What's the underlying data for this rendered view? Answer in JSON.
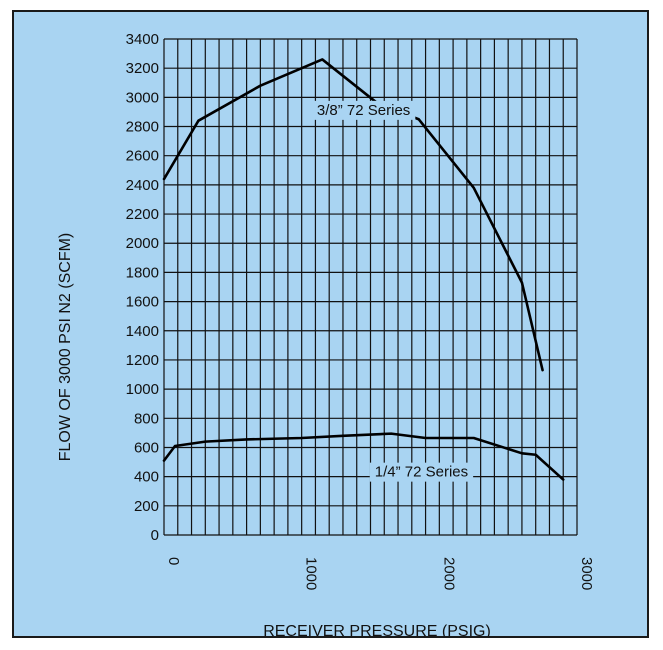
{
  "chart_data": {
    "type": "line",
    "title": "",
    "xlabel": "RECEIVER PRESSURE (PSIG)",
    "ylabel": "FLOW OF 3000 PSI N2 (SCFM)",
    "xlim": [
      0,
      3000
    ],
    "ylim": [
      0,
      3400
    ],
    "x_ticks": [
      "0",
      "1000",
      "2000",
      "3000"
    ],
    "y_ticks": [
      "0",
      "200",
      "400",
      "600",
      "800",
      "1000",
      "1200",
      "1400",
      "1600",
      "1800",
      "2000",
      "2200",
      "2400",
      "2600",
      "2800",
      "3000",
      "3200",
      "3400"
    ],
    "grid": true,
    "colors": {
      "background": "#a9d4f2",
      "line": "#000000",
      "grid": "#111111"
    },
    "series": [
      {
        "name": "3/8” 72 Series",
        "x": [
          0,
          250,
          700,
          1150,
          1550,
          1850,
          2250,
          2600,
          2750
        ],
        "y": [
          2440,
          2840,
          3080,
          3260,
          2960,
          2850,
          2380,
          1730,
          1130
        ]
      },
      {
        "name": "1/4” 72 Series",
        "x": [
          0,
          80,
          300,
          600,
          1000,
          1300,
          1650,
          1900,
          2250,
          2600,
          2700,
          2900
        ],
        "y": [
          510,
          610,
          640,
          655,
          665,
          680,
          695,
          665,
          665,
          560,
          550,
          380
        ]
      }
    ]
  }
}
